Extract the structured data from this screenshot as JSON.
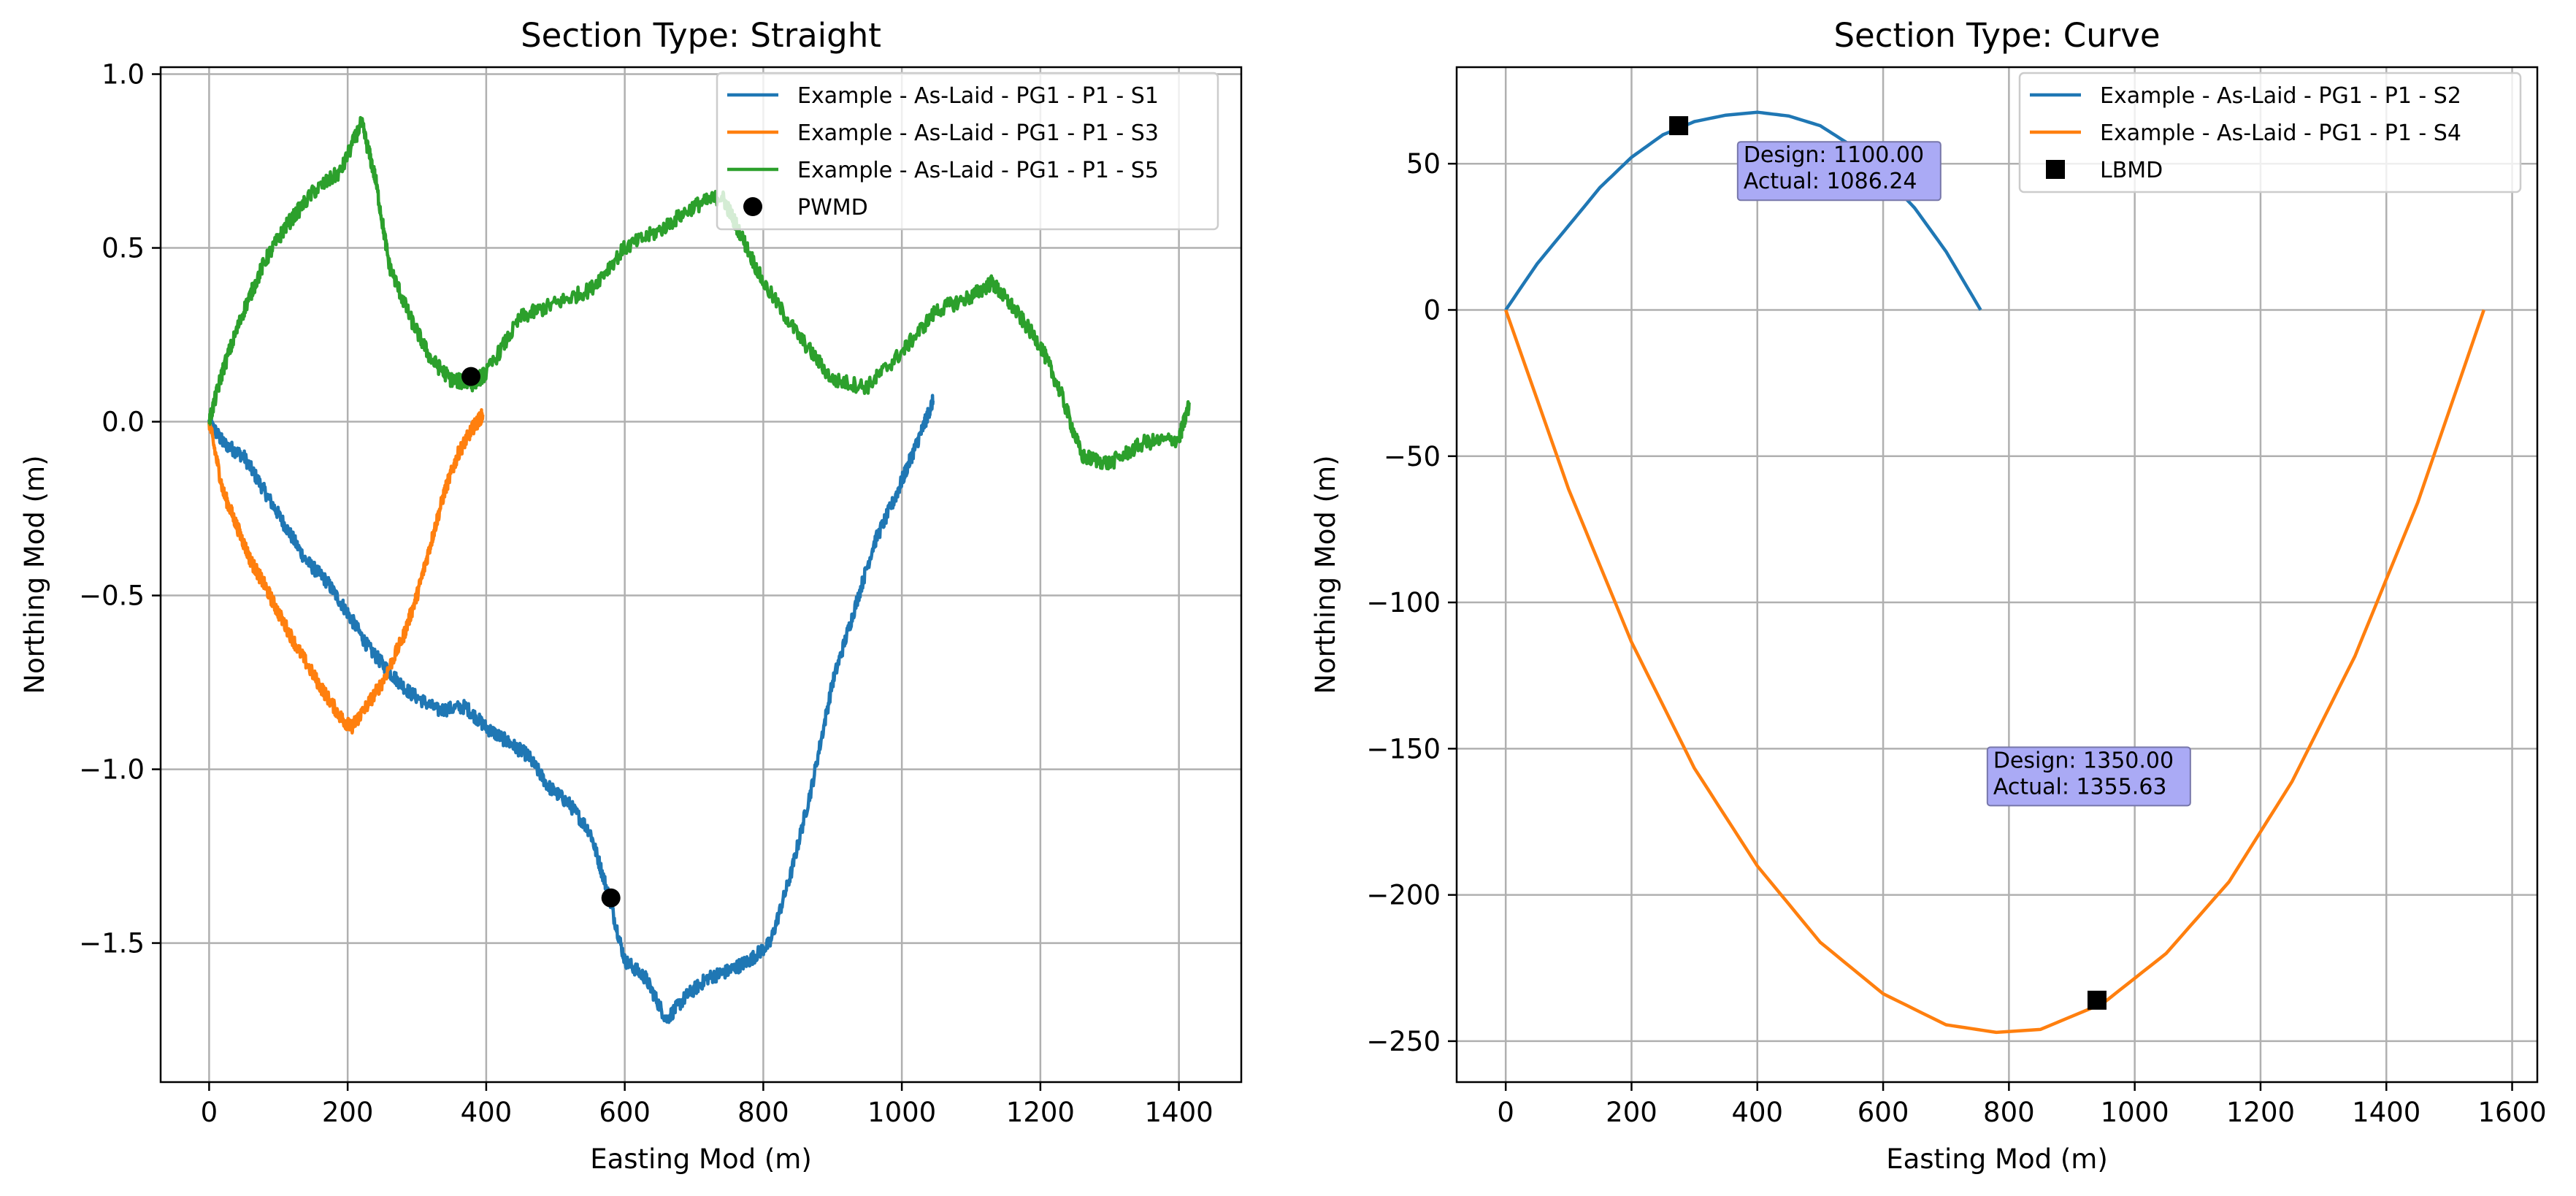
{
  "chart_data": [
    {
      "type": "line",
      "title": "Section Type: Straight",
      "xlabel": "Easting Mod (m)",
      "ylabel": "Northing Mod (m)",
      "xlim": [
        -70,
        1490
      ],
      "ylim": [
        -1.9,
        1.02
      ],
      "xticks": [
        0,
        200,
        400,
        600,
        800,
        1000,
        1200,
        1400
      ],
      "xtick_labels": [
        "0",
        "200",
        "400",
        "600",
        "800",
        "1000",
        "1200",
        "1400"
      ],
      "yticks": [
        1.0,
        0.5,
        0.0,
        -0.5,
        -1.0,
        -1.5
      ],
      "ytick_labels": [
        "1.0",
        "0.5",
        "0.0",
        "−0.5",
        "−1.0",
        "−1.5"
      ],
      "grid": true,
      "legend_position": "top-right",
      "series": [
        {
          "name": "Example - As-Laid - PG1 - P1 - S1",
          "color": "#1f77b4",
          "noise": 0.02,
          "x": [
            0,
            20,
            50,
            80,
            110,
            140,
            170,
            200,
            230,
            260,
            290,
            330,
            370,
            400,
            430,
            460,
            490,
            520,
            550,
            575,
            600,
            630,
            660,
            690,
            720,
            750,
            780,
            810,
            840,
            870,
            900,
            930,
            960,
            990,
            1010,
            1030,
            1045
          ],
          "y": [
            0.0,
            -0.06,
            -0.1,
            -0.2,
            -0.3,
            -0.4,
            -0.46,
            -0.55,
            -0.65,
            -0.72,
            -0.78,
            -0.83,
            -0.82,
            -0.88,
            -0.92,
            -0.96,
            -1.05,
            -1.1,
            -1.18,
            -1.35,
            -1.55,
            -1.6,
            -1.72,
            -1.65,
            -1.6,
            -1.58,
            -1.55,
            -1.5,
            -1.3,
            -1.05,
            -0.75,
            -0.55,
            -0.35,
            -0.22,
            -0.12,
            -0.02,
            0.06
          ]
        },
        {
          "name": "Example - As-Laid - PG1 - P1 - S3",
          "color": "#ff7f0e",
          "noise": 0.02,
          "x": [
            0,
            20,
            40,
            60,
            80,
            100,
            130,
            160,
            190,
            205,
            220,
            250,
            280,
            300,
            320,
            340,
            360,
            380,
            395
          ],
          "y": [
            0.0,
            -0.2,
            -0.3,
            -0.4,
            -0.47,
            -0.55,
            -0.66,
            -0.76,
            -0.85,
            -0.88,
            -0.84,
            -0.75,
            -0.62,
            -0.5,
            -0.35,
            -0.2,
            -0.09,
            -0.02,
            0.02
          ]
        },
        {
          "name": "Example - As-Laid - PG1 - P1 - S5",
          "color": "#2ca02c",
          "noise": 0.022,
          "x": [
            0,
            20,
            50,
            80,
            110,
            150,
            190,
            220,
            240,
            260,
            290,
            320,
            350,
            380,
            400,
            450,
            500,
            550,
            600,
            650,
            700,
            740,
            760,
            800,
            850,
            900,
            950,
            1000,
            1050,
            1100,
            1130,
            1160,
            1200,
            1230,
            1260,
            1300,
            1350,
            1400,
            1415
          ],
          "y": [
            0.0,
            0.15,
            0.32,
            0.46,
            0.56,
            0.66,
            0.72,
            0.86,
            0.7,
            0.45,
            0.3,
            0.18,
            0.12,
            0.11,
            0.14,
            0.3,
            0.34,
            0.38,
            0.5,
            0.55,
            0.62,
            0.65,
            0.57,
            0.4,
            0.25,
            0.12,
            0.1,
            0.2,
            0.32,
            0.36,
            0.4,
            0.33,
            0.22,
            0.08,
            -0.1,
            -0.12,
            -0.06,
            -0.05,
            0.05
          ]
        }
      ],
      "markers": {
        "name": "PWMD",
        "shape": "circle",
        "color": "#000000",
        "points": [
          [
            580,
            -1.37
          ],
          [
            378,
            0.13
          ]
        ]
      }
    },
    {
      "type": "line",
      "title": "Section Type: Curve",
      "xlabel": "Easting Mod (m)",
      "ylabel": "Northing Mod (m)",
      "xlim": [
        -78,
        1640
      ],
      "ylim": [
        -264,
        83
      ],
      "xticks": [
        0,
        200,
        400,
        600,
        800,
        1000,
        1200,
        1400,
        1600
      ],
      "xtick_labels": [
        "0",
        "200",
        "400",
        "600",
        "800",
        "1000",
        "1200",
        "1400",
        "1600"
      ],
      "yticks": [
        50,
        0,
        -50,
        -100,
        -150,
        -200,
        -250
      ],
      "ytick_labels": [
        "50",
        "0",
        "−50",
        "−100",
        "−150",
        "−200",
        "−250"
      ],
      "grid": true,
      "legend_position": "top-right",
      "series": [
        {
          "name": "Example - As-Laid - PG1 - P1 - S2",
          "color": "#1f77b4",
          "x": [
            0,
            50,
            100,
            150,
            200,
            250,
            300,
            350,
            400,
            450,
            500,
            550,
            600,
            650,
            700,
            755
          ],
          "y": [
            0,
            15.8,
            28.8,
            41.9,
            52.2,
            59.9,
            64.4,
            66.6,
            67.6,
            66.3,
            63.0,
            56.1,
            46.3,
            34.9,
            20.0,
            0
          ]
        },
        {
          "name": "Example - As-Laid - PG1 - P1 - S4",
          "color": "#ff7f0e",
          "x": [
            0,
            100,
            200,
            300,
            400,
            500,
            600,
            700,
            780,
            850,
            950,
            1050,
            1150,
            1250,
            1350,
            1450,
            1555
          ],
          "y": [
            0,
            -61.3,
            -113.6,
            -156.7,
            -190.1,
            -216.2,
            -233.8,
            -244.4,
            -247,
            -246,
            -237,
            -220,
            -195.5,
            -161.3,
            -118.4,
            -65.8,
            0
          ]
        }
      ],
      "markers": {
        "name": "LBMD",
        "shape": "square",
        "color": "#000000",
        "points": [
          [
            275,
            63
          ],
          [
            940,
            -236
          ]
        ]
      },
      "annotations": [
        {
          "lines": [
            "Design: 1100.00",
            "Actual: 1086.24"
          ],
          "x": 378,
          "y": 49
        },
        {
          "lines": [
            "Design: 1350.00",
            "Actual: 1355.63"
          ],
          "x": 775,
          "y": -158
        }
      ]
    }
  ]
}
